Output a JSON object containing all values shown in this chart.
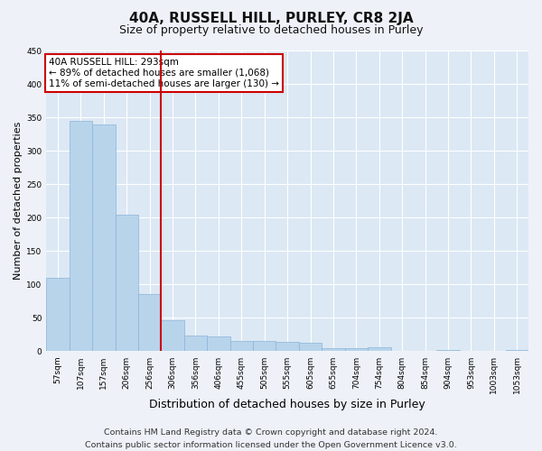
{
  "title": "40A, RUSSELL HILL, PURLEY, CR8 2JA",
  "subtitle": "Size of property relative to detached houses in Purley",
  "xlabel": "Distribution of detached houses by size in Purley",
  "ylabel": "Number of detached properties",
  "categories": [
    "57sqm",
    "107sqm",
    "157sqm",
    "206sqm",
    "256sqm",
    "306sqm",
    "356sqm",
    "406sqm",
    "455sqm",
    "505sqm",
    "555sqm",
    "605sqm",
    "655sqm",
    "704sqm",
    "754sqm",
    "804sqm",
    "854sqm",
    "904sqm",
    "953sqm",
    "1003sqm",
    "1053sqm"
  ],
  "values": [
    110,
    345,
    340,
    204,
    85,
    47,
    24,
    22,
    15,
    15,
    14,
    13,
    5,
    5,
    6,
    0,
    0,
    2,
    0,
    0,
    2
  ],
  "bar_color": "#b8d4eb",
  "bar_edge_color": "#8ab4d8",
  "vline_color": "#cc0000",
  "vline_x_index": 4.5,
  "annotation_text": "40A RUSSELL HILL: 293sqm\n← 89% of detached houses are smaller (1,068)\n11% of semi-detached houses are larger (130) →",
  "annotation_box_facecolor": "#ffffff",
  "annotation_box_edgecolor": "#cc0000",
  "ylim": [
    0,
    450
  ],
  "yticks": [
    0,
    50,
    100,
    150,
    200,
    250,
    300,
    350,
    400,
    450
  ],
  "footnote": "Contains HM Land Registry data © Crown copyright and database right 2024.\nContains public sector information licensed under the Open Government Licence v3.0.",
  "fig_facecolor": "#eef2f8",
  "plot_facecolor": "#dce8f4",
  "grid_color": "#ffffff",
  "title_fontsize": 11,
  "subtitle_fontsize": 9,
  "ylabel_fontsize": 8,
  "xlabel_fontsize": 9,
  "tick_fontsize": 6.5,
  "annotation_fontsize": 7.5,
  "footnote_fontsize": 6.8
}
